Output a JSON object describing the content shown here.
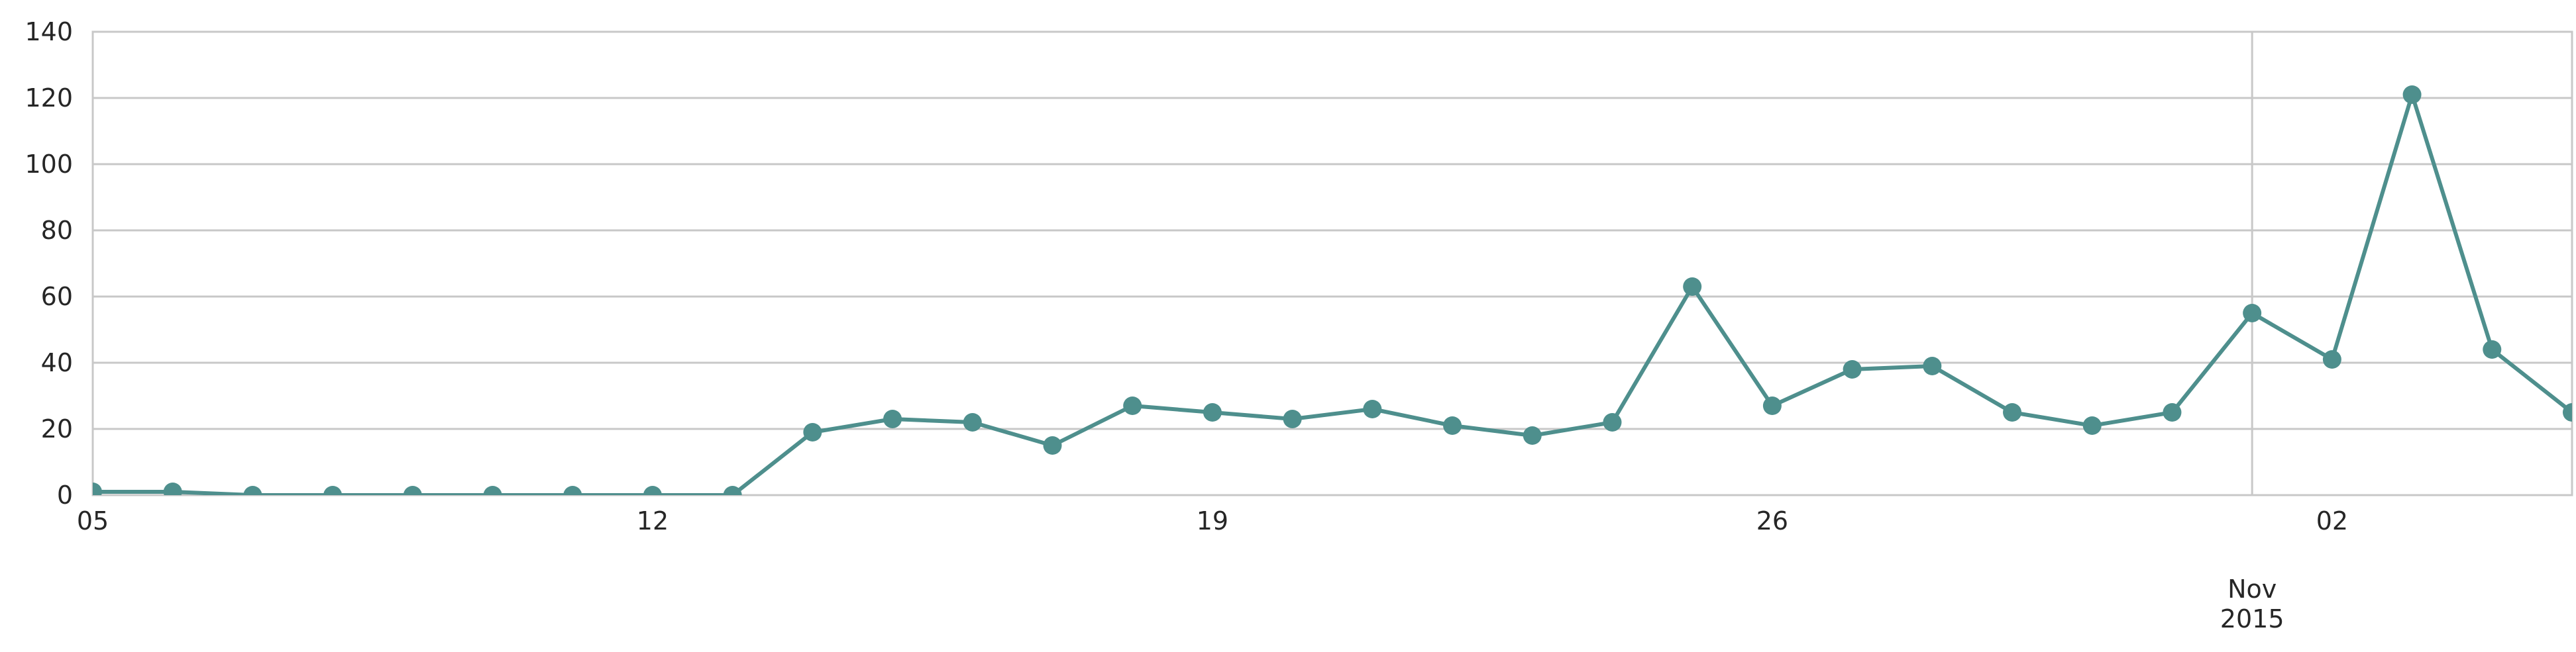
{
  "chart_data": {
    "type": "line",
    "title": "",
    "xlabel": "",
    "ylabel": "",
    "x_axis_type": "date",
    "x": [
      "2015-10-05",
      "2015-10-06",
      "2015-10-07",
      "2015-10-08",
      "2015-10-09",
      "2015-10-10",
      "2015-10-11",
      "2015-10-12",
      "2015-10-13",
      "2015-10-14",
      "2015-10-15",
      "2015-10-16",
      "2015-10-17",
      "2015-10-18",
      "2015-10-19",
      "2015-10-20",
      "2015-10-21",
      "2015-10-22",
      "2015-10-23",
      "2015-10-24",
      "2015-10-25",
      "2015-10-26",
      "2015-10-27",
      "2015-10-28",
      "2015-10-29",
      "2015-10-30",
      "2015-10-31",
      "2015-11-01",
      "2015-11-02",
      "2015-11-03",
      "2015-11-04",
      "2015-11-05"
    ],
    "series": [
      {
        "values": [
          1,
          1,
          0,
          0,
          0,
          0,
          0,
          0,
          0,
          19,
          23,
          22,
          15,
          27,
          25,
          23,
          26,
          21,
          18,
          22,
          63,
          27,
          38,
          39,
          25,
          21,
          25,
          55,
          41,
          121,
          44,
          25
        ]
      }
    ],
    "xlim": [
      "2015-10-05",
      "2015-11-05"
    ],
    "ylim": [
      0,
      140
    ],
    "y_ticks": [
      0,
      20,
      40,
      60,
      80,
      100,
      120,
      140
    ],
    "y_tick_labels": [
      "0",
      "20",
      "40",
      "60",
      "80",
      "100",
      "120",
      "140"
    ],
    "x_ticks": [
      {
        "date": "2015-10-05",
        "label": "05"
      },
      {
        "date": "2015-10-12",
        "label": "12"
      },
      {
        "date": "2015-10-19",
        "label": "19"
      },
      {
        "date": "2015-10-26",
        "label": "26"
      },
      {
        "date": "2015-11-02",
        "label": "02"
      }
    ],
    "x_major_ticks": [
      {
        "date": "2015-11-01",
        "label_lines": [
          "Nov",
          "2015"
        ]
      }
    ],
    "grid": "horizontal",
    "legend": "none",
    "colors": {
      "line": "#4e8f8d",
      "marker": "#4e8f8d",
      "grid": "#c8c8c8",
      "axes": "#c8c8c8",
      "text": "#262626"
    }
  }
}
